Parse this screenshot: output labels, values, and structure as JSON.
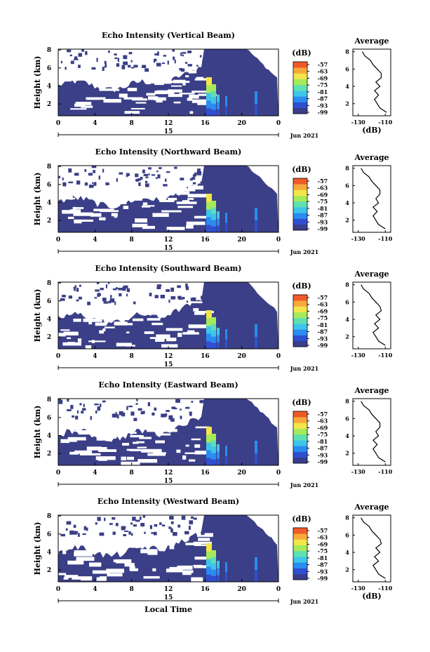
{
  "chart_data": [
    {
      "type": "heatmap",
      "title": "Echo Intensity (Vertical Beam)",
      "ylabel": "Height (km)",
      "yticks": [
        "2",
        "4",
        "6",
        "8"
      ],
      "xticks": [
        "0",
        "4",
        "8",
        "12",
        "16",
        "20",
        "0"
      ],
      "date_tick": "15",
      "date_label": "Jun 2021",
      "colorbar_unit": "(dB)",
      "colorbar_ticks": [
        "-57",
        "-63",
        "-69",
        "-75",
        "-81",
        "-87",
        "-93",
        "-99"
      ],
      "profile": {
        "title": "Average",
        "xlabel": "(dB)",
        "xticks": [
          "-130",
          "-110"
        ],
        "yticks": [
          "2",
          "4",
          "6",
          "8"
        ],
        "height_km": [
          1.0,
          1.5,
          2.0,
          2.5,
          3.0,
          3.5,
          4.0,
          4.5,
          5.0,
          5.5,
          6.0,
          6.5,
          7.0,
          7.5,
          8.0
        ],
        "db": [
          -109,
          -114,
          -116,
          -118,
          -115,
          -118,
          -114,
          -117,
          -113,
          -113,
          -116,
          -119,
          -121,
          -125,
          -127
        ]
      }
    },
    {
      "type": "heatmap",
      "title": "Echo Intensity (Northward Beam)",
      "ylabel": "Height (km)",
      "yticks": [
        "2",
        "4",
        "6",
        "8"
      ],
      "xticks": [
        "0",
        "4",
        "8",
        "12",
        "16",
        "20",
        "0"
      ],
      "date_tick": "15",
      "date_label": "Jun 2021",
      "colorbar_unit": "(dB)",
      "colorbar_ticks": [
        "-57",
        "-63",
        "-69",
        "-75",
        "-81",
        "-87",
        "-93",
        "-99"
      ],
      "profile": {
        "title": "Average",
        "xlabel": "",
        "xticks": [
          "-130",
          "-110"
        ],
        "yticks": [
          "2",
          "4",
          "6",
          "8"
        ],
        "height_km": [
          1.0,
          1.5,
          2.0,
          2.5,
          3.0,
          3.5,
          4.0,
          4.5,
          5.0,
          5.5,
          6.0,
          6.5,
          7.0,
          7.5,
          8.0
        ],
        "db": [
          -110,
          -115,
          -117,
          -119,
          -116,
          -119,
          -115,
          -117,
          -114,
          -114,
          -117,
          -120,
          -122,
          -126,
          -128
        ]
      }
    },
    {
      "type": "heatmap",
      "title": "Echo Intensity (Southward Beam)",
      "ylabel": "Height (km)",
      "yticks": [
        "2",
        "4",
        "6",
        "8"
      ],
      "xticks": [
        "0",
        "4",
        "8",
        "12",
        "16",
        "20",
        "0"
      ],
      "date_tick": "15",
      "date_label": "Jun 2021",
      "colorbar_unit": "(dB)",
      "colorbar_ticks": [
        "-57",
        "-63",
        "-69",
        "-75",
        "-81",
        "-87",
        "-93",
        "-99"
      ],
      "profile": {
        "title": "Average",
        "xlabel": "",
        "xticks": [
          "-130",
          "-110"
        ],
        "yticks": [
          "2",
          "4",
          "6",
          "8"
        ],
        "height_km": [
          1.0,
          1.5,
          2.0,
          2.5,
          3.0,
          3.5,
          4.0,
          4.5,
          5.0,
          5.5,
          6.0,
          6.5,
          7.0,
          7.5,
          8.0
        ],
        "db": [
          -110,
          -115,
          -117,
          -119,
          -115,
          -118,
          -114,
          -117,
          -113,
          -114,
          -117,
          -120,
          -122,
          -126,
          -128
        ]
      }
    },
    {
      "type": "heatmap",
      "title": "Echo Intensity (Eastward Beam)",
      "ylabel": "Height (km)",
      "yticks": [
        "2",
        "4",
        "6",
        "8"
      ],
      "xticks": [
        "0",
        "4",
        "8",
        "12",
        "16",
        "20",
        "0"
      ],
      "date_tick": "15",
      "date_label": "Jun 2021",
      "colorbar_unit": "(dB)",
      "colorbar_ticks": [
        "-57",
        "-63",
        "-69",
        "-75",
        "-81",
        "-87",
        "-93",
        "-99"
      ],
      "profile": {
        "title": "Average",
        "xlabel": "",
        "xticks": [
          "-130",
          "-110"
        ],
        "yticks": [
          "2",
          "4",
          "6",
          "8"
        ],
        "height_km": [
          1.0,
          1.5,
          2.0,
          2.5,
          3.0,
          3.5,
          4.0,
          4.5,
          5.0,
          5.5,
          6.0,
          6.5,
          7.0,
          7.5,
          8.0
        ],
        "db": [
          -110,
          -115,
          -117,
          -119,
          -116,
          -119,
          -115,
          -117,
          -114,
          -114,
          -117,
          -120,
          -122,
          -126,
          -128
        ]
      }
    },
    {
      "type": "heatmap",
      "title": "Echo Intensity (Westward Beam)",
      "ylabel": "Height (km)",
      "yticks": [
        "2",
        "4",
        "6",
        "8"
      ],
      "xticks": [
        "0",
        "4",
        "8",
        "12",
        "16",
        "20",
        "0"
      ],
      "date_tick": "15",
      "date_label": "Jun 2021",
      "xlabel": "Local Time",
      "colorbar_unit": "(dB)",
      "colorbar_ticks": [
        "-57",
        "-63",
        "-69",
        "-75",
        "-81",
        "-87",
        "-93",
        "-99"
      ],
      "profile": {
        "title": "Average",
        "xlabel": "(dB)",
        "xticks": [
          "-130",
          "-110"
        ],
        "yticks": [
          "2",
          "4",
          "6",
          "8"
        ],
        "height_km": [
          1.0,
          1.5,
          2.0,
          2.5,
          3.0,
          3.5,
          4.0,
          4.5,
          5.0,
          5.5,
          6.0,
          6.5,
          7.0,
          7.5,
          8.0
        ],
        "db": [
          -110,
          -115,
          -117,
          -119,
          -115,
          -118,
          -114,
          -117,
          -113,
          -114,
          -117,
          -120,
          -122,
          -126,
          -128
        ]
      }
    }
  ],
  "colors": {
    "background_echo": "#3b3f87",
    "colorbar": [
      "#3a3d8c",
      "#2f4fd0",
      "#2a8cf0",
      "#3ec6e8",
      "#5ee0b0",
      "#a6ea5a",
      "#f2e64a",
      "#f8a83a",
      "#ef5a2a"
    ],
    "line": "#000000"
  }
}
